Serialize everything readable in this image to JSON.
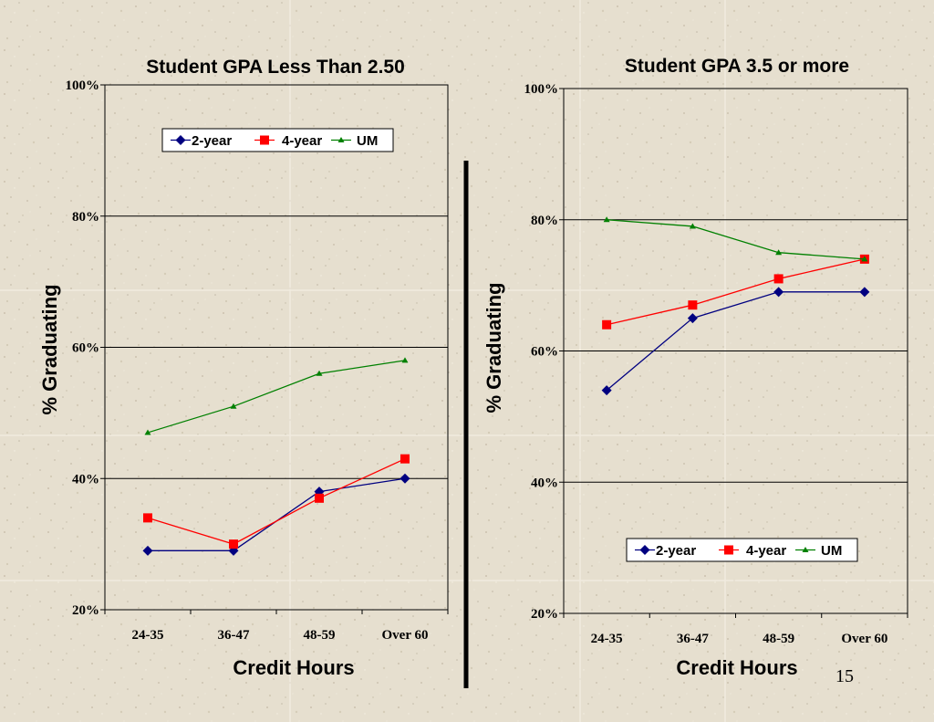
{
  "page_number": "15",
  "chart_data": [
    {
      "type": "line",
      "title": "Student GPA Less Than 2.50",
      "xlabel": "Credit Hours",
      "ylabel": "% Graduating",
      "categories": [
        "24-35",
        "36-47",
        "48-59",
        "Over 60"
      ],
      "ylim": [
        20,
        100
      ],
      "yticks": [
        "20%",
        "40%",
        "60%",
        "80%",
        "100%"
      ],
      "ytick_values": [
        20,
        40,
        60,
        80,
        100
      ],
      "gridlines": [
        40,
        60,
        80
      ],
      "legend_position": "top",
      "series": [
        {
          "name": "2-year",
          "values": [
            29,
            29,
            38,
            40
          ],
          "color": "#000080",
          "marker": "diamond"
        },
        {
          "name": "4-year",
          "values": [
            34,
            30,
            37,
            43
          ],
          "color": "#ff0000",
          "marker": "square"
        },
        {
          "name": "UM",
          "values": [
            47,
            51,
            56,
            58
          ],
          "color": "#008000",
          "marker": "triangle"
        }
      ]
    },
    {
      "type": "line",
      "title": "Student GPA 3.5 or more",
      "xlabel": "Credit Hours",
      "ylabel": "% Graduating",
      "categories": [
        "24-35",
        "36-47",
        "48-59",
        "Over 60"
      ],
      "ylim": [
        20,
        100
      ],
      "yticks": [
        "20%",
        "40%",
        "60%",
        "80%",
        "100%"
      ],
      "ytick_values": [
        20,
        40,
        60,
        80,
        100
      ],
      "gridlines": [
        40,
        60,
        80
      ],
      "legend_position": "bottom",
      "series": [
        {
          "name": "2-year",
          "values": [
            54,
            65,
            69,
            69
          ],
          "color": "#000080",
          "marker": "diamond"
        },
        {
          "name": "4-year",
          "values": [
            64,
            67,
            71,
            74
          ],
          "color": "#ff0000",
          "marker": "square"
        },
        {
          "name": "UM",
          "values": [
            80,
            79,
            75,
            74
          ],
          "color": "#008000",
          "marker": "triangle"
        }
      ]
    }
  ]
}
